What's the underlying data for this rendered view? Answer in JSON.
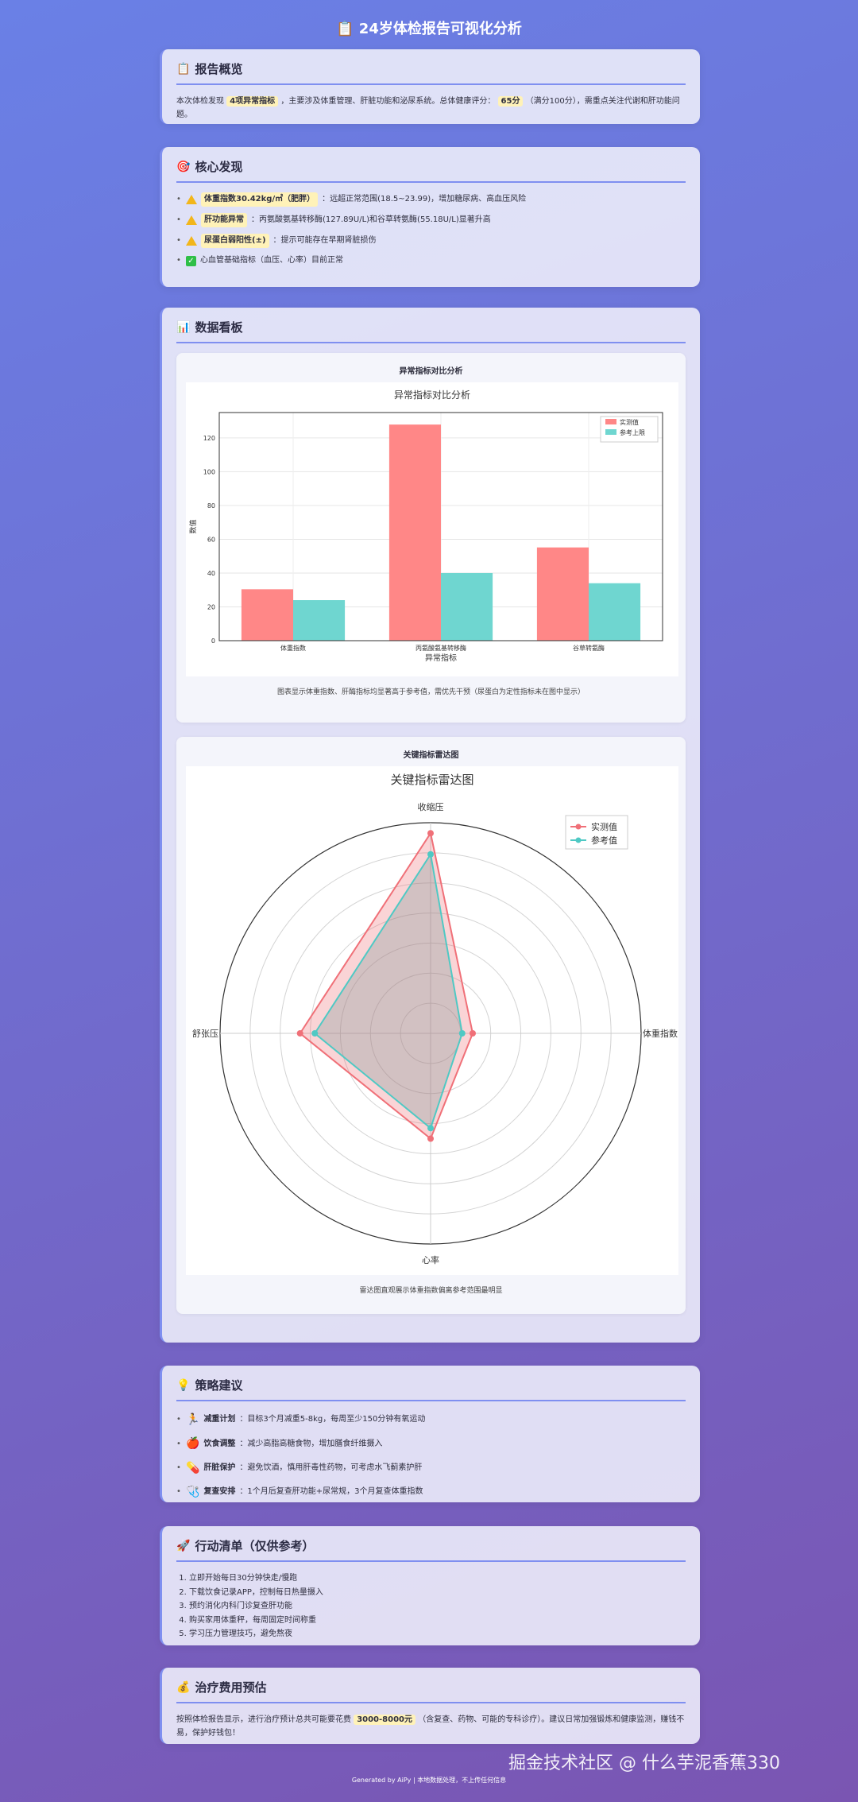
{
  "title": "📋 24岁体检报告可视化分析",
  "overview": {
    "heading": "报告概览",
    "p1": "本次体检发现",
    "hl1": "4项异常指标",
    "p2": "，主要涉及体重管理、肝脏功能和泌尿系统。总体健康评分：",
    "hl2": "65分",
    "p3": "（满分100分），需重点关注代谢和肝功能问题。"
  },
  "findings": {
    "heading": "核心发现",
    "items": [
      {
        "hl": "体重指数30.42kg/㎡（肥胖）",
        "text": "：远超正常范围(18.5~23.99)，增加糖尿病、高血压风险"
      },
      {
        "hl": "肝功能异常",
        "text": "：丙氨酸氨基转移酶(127.89U/L)和谷草转氨酶(55.18U/L)显著升高"
      },
      {
        "hl": "尿蛋白弱阳性(±)",
        "text": "：提示可能存在早期肾脏损伤"
      },
      {
        "hl": "",
        "text": "心血管基础指标（血压、心率）目前正常"
      }
    ]
  },
  "dashboard": {
    "heading": "数据看板",
    "bar_title": "异常指标对比分析",
    "bar_caption": "图表显示体重指数、肝酶指标均显著高于参考值，需优先干预（尿蛋白为定性指标未在图中显示）",
    "radar_title": "关键指标雷达图",
    "radar_caption": "雷达图直观展示体重指数偏离参考范围最明显"
  },
  "chart_data": [
    {
      "type": "bar",
      "title": "异常指标对比分析",
      "xlabel": "异常指标",
      "ylabel": "数值",
      "categories": [
        "体重指数",
        "丙氨酸氨基转移酶",
        "谷草转氨酶"
      ],
      "series": [
        {
          "name": "实测值",
          "values": [
            30.42,
            127.89,
            55.18
          ],
          "color": "#ff8787"
        },
        {
          "name": "参考上限",
          "values": [
            23.99,
            40,
            34
          ],
          "color": "#6fd6d0"
        }
      ],
      "ylim": [
        0,
        135
      ],
      "yticks": [
        0,
        20,
        40,
        60,
        80,
        100,
        120
      ],
      "grid": true,
      "legend": "top-right"
    },
    {
      "type": "radar",
      "title": "关键指标雷达图",
      "axes": [
        "收缩压",
        "体重指数",
        "心率",
        "舒张压"
      ],
      "series": [
        {
          "name": "实测值",
          "values": [
            0.95,
            0.2,
            0.5,
            0.62
          ],
          "color": "#f07078"
        },
        {
          "name": "参考值",
          "values": [
            0.85,
            0.15,
            0.45,
            0.55
          ],
          "color": "#4fc9c4"
        }
      ],
      "rmax": 1,
      "grid": true,
      "legend": "top-right"
    }
  ],
  "strategy": {
    "heading": "策略建议",
    "items": [
      {
        "bold": "减重计划",
        "text": "：目标3个月减重5-8kg，每周至少150分钟有氧运动"
      },
      {
        "bold": "饮食调整",
        "text": "：减少高脂高糖食物，增加膳食纤维摄入"
      },
      {
        "bold": "肝脏保护",
        "text": "：避免饮酒，慎用肝毒性药物，可考虑水飞蓟素护肝"
      },
      {
        "bold": "复查安排",
        "text": "：1个月后复查肝功能+尿常规，3个月复查体重指数"
      }
    ]
  },
  "actions": {
    "heading": "行动清单（仅供参考）",
    "items": [
      "立即开始每日30分钟快走/慢跑",
      "下载饮食记录APP，控制每日热量摄入",
      "预约消化内科门诊复查肝功能",
      "购买家用体重秤，每周固定时间称重",
      "学习压力管理技巧，避免熬夜"
    ]
  },
  "cost": {
    "heading": "治疗费用预估",
    "p1": "按照体检报告显示，进行治疗预计总共可能要花费",
    "hl": "3000-8000元",
    "p2": "（含复查、药物、可能的专科诊疗）。建议日常加强锻炼和健康监测，赚钱不易，保护好钱包！"
  },
  "footer": "Generated by AiPy | 本地数据处理，不上传任何信息",
  "watermark": "掘金技术社区 @ 什么芋泥香蕉330"
}
